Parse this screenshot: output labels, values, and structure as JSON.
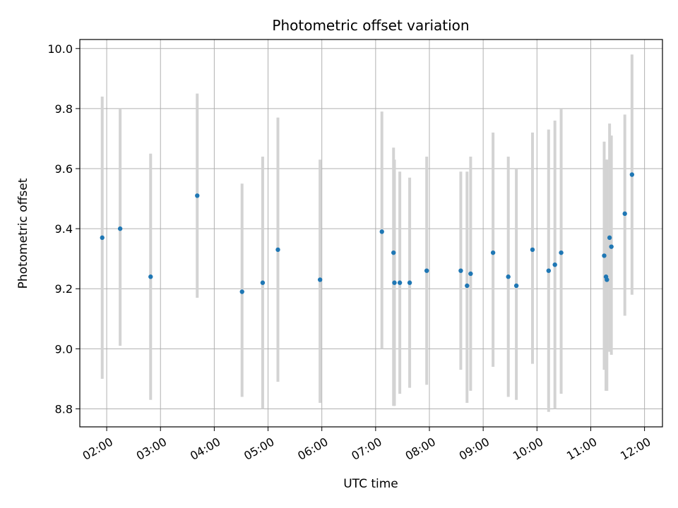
{
  "chart_data": {
    "type": "scatter",
    "title": "Photometric offset variation",
    "xlabel": "UTC time",
    "ylabel": "Photometric offset",
    "xlim": [
      "01:30",
      "12:20"
    ],
    "ylim": [
      8.74,
      10.03
    ],
    "grid": true,
    "x_tick_labels": [
      "02:00",
      "03:00",
      "04:00",
      "05:00",
      "06:00",
      "07:00",
      "08:00",
      "09:00",
      "10:00",
      "11:00",
      "12:00"
    ],
    "y_ticks": [
      8.8,
      9.0,
      9.2,
      9.4,
      9.6,
      9.8,
      10.0
    ],
    "y_tick_labels": [
      "8.8",
      "9.0",
      "9.2",
      "9.4",
      "9.6",
      "9.8",
      "10.0"
    ],
    "colors": {
      "point": "#1f77b4",
      "errorbar": "#d3d3d3",
      "grid": "#b0b0b0"
    },
    "points": [
      {
        "x": "01:55",
        "y": 9.37,
        "low": 8.9,
        "high": 9.84
      },
      {
        "x": "02:15",
        "y": 9.4,
        "low": 9.01,
        "high": 9.8
      },
      {
        "x": "02:49",
        "y": 9.24,
        "low": 8.83,
        "high": 9.65
      },
      {
        "x": "03:41",
        "y": 9.51,
        "low": 9.17,
        "high": 9.85
      },
      {
        "x": "04:31",
        "y": 9.19,
        "low": 8.84,
        "high": 9.55
      },
      {
        "x": "04:54",
        "y": 9.22,
        "low": 8.8,
        "high": 9.64
      },
      {
        "x": "05:11",
        "y": 9.33,
        "low": 8.89,
        "high": 9.77
      },
      {
        "x": "05:58",
        "y": 9.23,
        "low": 8.82,
        "high": 9.63
      },
      {
        "x": "07:07",
        "y": 9.39,
        "low": 9.0,
        "high": 9.79
      },
      {
        "x": "07:20",
        "y": 9.32,
        "low": 8.81,
        "high": 9.67
      },
      {
        "x": "07:21",
        "y": 9.22,
        "low": 8.81,
        "high": 9.63
      },
      {
        "x": "07:27",
        "y": 9.22,
        "low": 8.85,
        "high": 9.59
      },
      {
        "x": "07:38",
        "y": 9.22,
        "low": 8.87,
        "high": 9.57
      },
      {
        "x": "07:57",
        "y": 9.26,
        "low": 8.88,
        "high": 9.64
      },
      {
        "x": "08:35",
        "y": 9.26,
        "low": 8.93,
        "high": 9.59
      },
      {
        "x": "08:42",
        "y": 9.21,
        "low": 8.82,
        "high": 9.59
      },
      {
        "x": "08:46",
        "y": 9.25,
        "low": 8.86,
        "high": 9.64
      },
      {
        "x": "09:11",
        "y": 9.32,
        "low": 8.94,
        "high": 9.72
      },
      {
        "x": "09:28",
        "y": 9.24,
        "low": 8.84,
        "high": 9.64
      },
      {
        "x": "09:37",
        "y": 9.21,
        "low": 8.83,
        "high": 9.6
      },
      {
        "x": "09:55",
        "y": 9.33,
        "low": 8.95,
        "high": 9.72
      },
      {
        "x": "10:13",
        "y": 9.26,
        "low": 8.79,
        "high": 9.73
      },
      {
        "x": "10:20",
        "y": 9.28,
        "low": 8.8,
        "high": 9.76
      },
      {
        "x": "10:27",
        "y": 9.32,
        "low": 8.85,
        "high": 9.8
      },
      {
        "x": "11:15",
        "y": 9.31,
        "low": 8.93,
        "high": 9.69
      },
      {
        "x": "11:17",
        "y": 9.24,
        "low": 8.86,
        "high": 9.63
      },
      {
        "x": "11:18",
        "y": 9.23,
        "low": 8.86,
        "high": 9.63
      },
      {
        "x": "11:21",
        "y": 9.37,
        "low": 8.99,
        "high": 9.75
      },
      {
        "x": "11:23",
        "y": 9.34,
        "low": 8.98,
        "high": 9.71
      },
      {
        "x": "11:38",
        "y": 9.45,
        "low": 9.11,
        "high": 9.78
      },
      {
        "x": "11:46",
        "y": 9.58,
        "low": 9.18,
        "high": 9.98
      }
    ]
  }
}
